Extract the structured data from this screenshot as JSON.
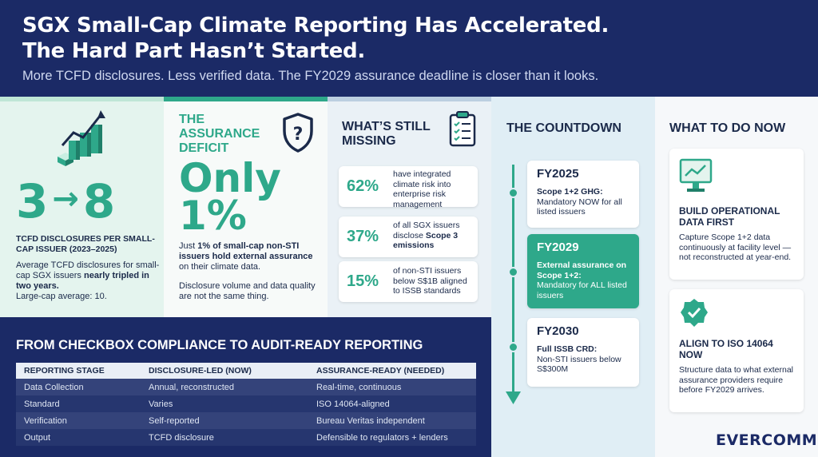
{
  "header": {
    "title_line1": "SGX Small-Cap Climate Reporting Has Accelerated.",
    "title_line2": "The Hard Part Hasn’t Started.",
    "subtitle": "More TCFD disclosures. Less verified data. The FY2029 assurance deadline is closer than it looks."
  },
  "panel1": {
    "from": "3",
    "arrow": "→",
    "to": "8",
    "label": "TCFD DISCLOSURES PER SMALL-CAP ISSUER (2023–2025)",
    "desc_pre": "Average TCFD disclosures for small-cap SGX issuers ",
    "desc_bold": "nearly tripled in two years.",
    "large_cap": "Large-cap average: 10."
  },
  "panel2": {
    "heading": "THE ASSURANCE DEFICIT",
    "big_line1": "Only",
    "big_line2": "1%",
    "text1_pre": "Just ",
    "text1_bold": "1% of small-cap non-STI issuers hold external assurance",
    "text1_post": " on their climate data.",
    "text2": "Disclosure volume and data quality are not the same thing."
  },
  "panel3": {
    "heading": "WHAT’S STILL MISSING",
    "stats": [
      {
        "value": "62%",
        "text": "have integrated climate risk into enterprise risk management"
      },
      {
        "value": "37%",
        "text_pre": "of all SGX issuers disclose ",
        "text_bold": "Scope 3 emissions"
      },
      {
        "value": "15%",
        "text": "of non-STI issuers below S$1B aligned to ISSB standards"
      }
    ]
  },
  "countdown": {
    "heading": "THE COUNTDOWN",
    "items": [
      {
        "year": "FY2025",
        "bold": "Scope 1+2 GHG:",
        "text": "Mandatory NOW for all listed issuers"
      },
      {
        "year": "FY2029",
        "bold": "External assurance on Scope 1+2:",
        "text": "Mandatory for ALL listed issuers"
      },
      {
        "year": "FY2030",
        "bold": "Full ISSB CRD:",
        "text": "Non-STI issuers below S$300M"
      }
    ]
  },
  "todo": {
    "heading": "WHAT TO DO NOW",
    "items": [
      {
        "title": "BUILD OPERATIONAL DATA FIRST",
        "text": "Capture Scope 1+2 data continuously at facility level — not reconstructed at year-end."
      },
      {
        "title": "ALIGN TO ISO 14064 NOW",
        "text": "Structure data to what external assurance providers require before FY2029 arrives."
      }
    ]
  },
  "table": {
    "title": "FROM CHECKBOX COMPLIANCE TO AUDIT-READY REPORTING",
    "headers": [
      "REPORTING STAGE",
      "DISCLOSURE-LED (NOW)",
      "ASSURANCE-READY (NEEDED)"
    ],
    "rows": [
      [
        "Data Collection",
        "Annual, reconstructed",
        "Real-time, continuous"
      ],
      [
        "Standard",
        "Varies",
        "ISO 14064-aligned"
      ],
      [
        "Verification",
        "Self-reported",
        "Bureau Veritas independent"
      ],
      [
        "Output",
        "TCFD disclosure",
        "Defensible to regulators + lenders"
      ]
    ]
  },
  "logo": "EVERCOMM",
  "colors": {
    "navy": "#1b2a66",
    "teal": "#2ea88a"
  }
}
